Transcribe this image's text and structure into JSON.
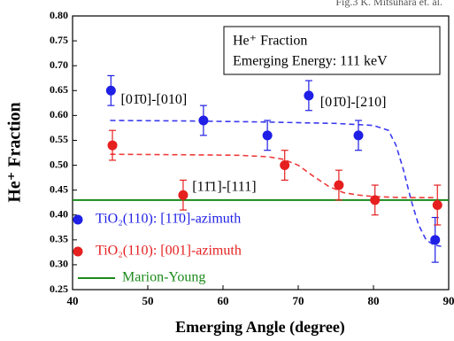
{
  "header": {
    "note": "Fig.3 K. Mitsuhara et. al."
  },
  "chart_data": {
    "type": "scatter",
    "xlabel": "Emerging Angle (degree)",
    "ylabel": "He⁺ Fraction",
    "xlim": [
      40,
      90
    ],
    "xticks": [
      40,
      50,
      60,
      70,
      80,
      90
    ],
    "ylim": [
      0.25,
      0.8
    ],
    "yticks": [
      0.25,
      {
        "value": 0.3,
        "label": "0.30"
      },
      0.35,
      {
        "value": 0.4,
        "label": "0.40"
      },
      0.45,
      {
        "value": 0.5,
        "label": "0.50"
      },
      0.55,
      {
        "value": 0.6,
        "label": "0.60"
      },
      0.65,
      {
        "value": 0.7,
        "label": "0.70"
      },
      0.75,
      {
        "value": 0.8,
        "label": "0.80"
      }
    ],
    "annotation_box": [
      "He⁺ Fraction",
      "Emerging Energy: 111 keV"
    ],
    "annotations": [
      {
        "text": "[01̄0]-[010]",
        "x": 45,
        "y": 0.63
      },
      {
        "text": "[01̄0]-[210]",
        "x": 71.5,
        "y": 0.625
      },
      {
        "text": "[11̄1]-[111]",
        "x": 54.5,
        "y": 0.455
      }
    ],
    "series": [
      {
        "name": "TiO₂(110): [11̄0]-azimuth",
        "color": "#1f1fe6",
        "x": [
          45.1,
          57.4,
          65.9,
          71.4,
          78.0,
          88.2
        ],
        "values": [
          0.65,
          0.59,
          0.56,
          0.64,
          0.56,
          0.35
        ],
        "errors": [
          0.03,
          0.03,
          0.03,
          0.03,
          0.03,
          0.045
        ]
      },
      {
        "name": "TiO₂(110): [001]-azimuth",
        "color": "#e61f1f",
        "x": [
          45.3,
          54.7,
          68.2,
          75.4,
          80.2,
          88.5
        ],
        "values": [
          0.54,
          0.44,
          0.5,
          0.46,
          0.43,
          0.42
        ],
        "errors": [
          0.03,
          0.03,
          0.03,
          0.03,
          0.03,
          0.04
        ]
      }
    ],
    "fits": [
      {
        "color": "#3a3af0",
        "x": [
          45,
          55,
          65,
          75,
          80,
          82,
          83,
          84,
          85,
          86,
          87,
          88,
          89
        ],
        "values": [
          0.59,
          0.589,
          0.587,
          0.584,
          0.58,
          0.57,
          0.54,
          0.49,
          0.43,
          0.38,
          0.35,
          0.34,
          0.337
        ]
      },
      {
        "color": "#f03a3a",
        "x": [
          45,
          55,
          62,
          66,
          68,
          70,
          72,
          74,
          76,
          78,
          80,
          84,
          88
        ],
        "values": [
          0.522,
          0.521,
          0.52,
          0.517,
          0.512,
          0.5,
          0.478,
          0.458,
          0.445,
          0.44,
          0.437,
          0.435,
          0.435
        ]
      }
    ],
    "reference_lines": [
      {
        "name": "Marion-Young",
        "color": "#1a8a1a",
        "value": 0.43
      }
    ]
  }
}
